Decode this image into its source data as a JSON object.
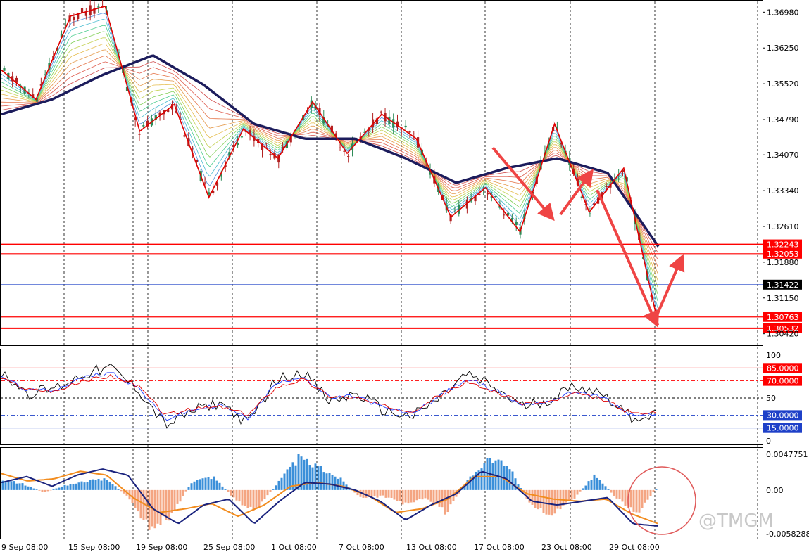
{
  "watermark": "@TMGM",
  "colors": {
    "background": "#ffffff",
    "grid": "#000000",
    "bull_candle": "#2e8b57",
    "bear_candle": "#b22222",
    "zigzag": "#e00000",
    "ma_slow": "#1c1c5c",
    "level_red": "#ff0000",
    "level_blue": "#1e40c8",
    "arrow": "#ef4444",
    "macd_hist_pos": "#3b8fd9",
    "macd_hist_neg": "#f4a582",
    "macd_line": "#1a237e",
    "signal_line": "#f28c1e",
    "stoch_main": "#000000",
    "stoch_blue": "#1e3aff",
    "stoch_red": "#e00000",
    "highlight_circle": "#e05a5a"
  },
  "chart_data": [
    {
      "type": "candlestick",
      "title": "",
      "x_tick_labels": [
        "9 Sep 08:00",
        "15 Sep 08:00",
        "19 Sep 08:00",
        "25 Sep 08:00",
        "1 Oct 08:00",
        "7 Oct 08:00",
        "13 Oct 08:00",
        "17 Oct 08:00",
        "23 Oct 08:00",
        "29 Oct 08:00"
      ],
      "y_tick_labels": [
        "1.36980",
        "1.36250",
        "1.35520",
        "1.34790",
        "1.34070",
        "1.33340",
        "1.32610",
        "1.31880",
        "1.31150",
        "1.30420"
      ],
      "ylim": [
        1.302,
        1.372
      ],
      "current_price": "1.31422",
      "levels": [
        {
          "value": "1.32243",
          "color": "red"
        },
        {
          "value": "1.32053",
          "color": "red"
        },
        {
          "value": "1.30763",
          "color": "red"
        },
        {
          "value": "1.30532",
          "color": "red"
        }
      ],
      "zigzag_pivots": [
        1.358,
        1.352,
        1.369,
        1.371,
        1.3455,
        1.351,
        1.332,
        1.346,
        1.34,
        1.3515,
        1.341,
        1.349,
        1.344,
        1.328,
        1.334,
        1.325,
        1.347,
        1.329,
        1.338,
        1.306
      ],
      "moving_average_slow": [
        1.349,
        1.352,
        1.357,
        1.361,
        1.355,
        1.347,
        1.344,
        1.344,
        1.34,
        1.335,
        1.338,
        1.34,
        1.337,
        1.322
      ]
    },
    {
      "type": "line",
      "title": "",
      "ylim": [
        0,
        100
      ],
      "y_tick_labels": [
        "100",
        "85.0000",
        "70.0000",
        "50",
        "30.0000",
        "15.0000",
        "0"
      ],
      "levels": [
        85,
        70,
        50,
        30,
        15
      ],
      "series": [
        {
          "values": [
            80,
            55,
            62,
            78,
            85,
            60,
            18,
            35,
            45,
            20,
            70,
            82,
            45,
            55,
            35,
            28,
            50,
            78,
            62,
            40,
            48,
            65,
            55,
            28,
            30
          ]
        },
        {
          "values": [
            75,
            58,
            60,
            74,
            80,
            62,
            25,
            36,
            42,
            26,
            66,
            76,
            50,
            52,
            38,
            32,
            52,
            72,
            60,
            42,
            46,
            58,
            50,
            30,
            31
          ]
        },
        {
          "values": [
            72,
            60,
            58,
            70,
            76,
            64,
            30,
            37,
            40,
            30,
            62,
            72,
            52,
            50,
            40,
            35,
            53,
            68,
            58,
            44,
            45,
            55,
            48,
            32,
            32
          ]
        }
      ]
    },
    {
      "type": "bar",
      "title": "",
      "y_tick_labels": [
        "0.0047751",
        "0.00",
        "-0.0058288"
      ],
      "ylim": [
        -0.0058288,
        0.0047751
      ],
      "histogram": [
        0.0015,
        0.0008,
        -0.0003,
        0.0006,
        0.0012,
        0.0014,
        -0.001,
        -0.005,
        -0.0035,
        0.0012,
        0.0018,
        -0.0012,
        -0.0028,
        0.0008,
        0.0042,
        0.003,
        0.0015,
        -0.0012,
        -0.0008,
        -0.0018,
        -0.001,
        -0.003,
        0.0012,
        0.0045,
        0.0028,
        -0.002,
        -0.0032,
        -0.0012,
        0.002,
        -0.001,
        -0.003,
        0.0005
      ],
      "macd_line": [
        0.001,
        0.0018,
        0.0005,
        0.002,
        0.0028,
        0.002,
        -0.0025,
        -0.0045,
        -0.002,
        -0.0012,
        -0.0045,
        -0.0015,
        0.001,
        0.0008,
        0.0,
        -0.0015,
        -0.004,
        -0.002,
        -0.0005,
        0.0025,
        0.0015,
        -0.0015,
        -0.002,
        -0.0015,
        -0.001,
        -0.0045,
        -0.0048
      ],
      "signal_line": [
        0.0022,
        0.0012,
        0.0015,
        0.0025,
        0.002,
        -0.001,
        -0.003,
        -0.0025,
        -0.0018,
        -0.0035,
        -0.002,
        0.0005,
        0.001,
        0.0005,
        -0.0008,
        -0.003,
        -0.0025,
        -0.0012,
        0.0018,
        0.0018,
        -0.0005,
        -0.0012,
        -0.0015,
        -0.0012,
        -0.0032,
        -0.0045
      ]
    }
  ]
}
